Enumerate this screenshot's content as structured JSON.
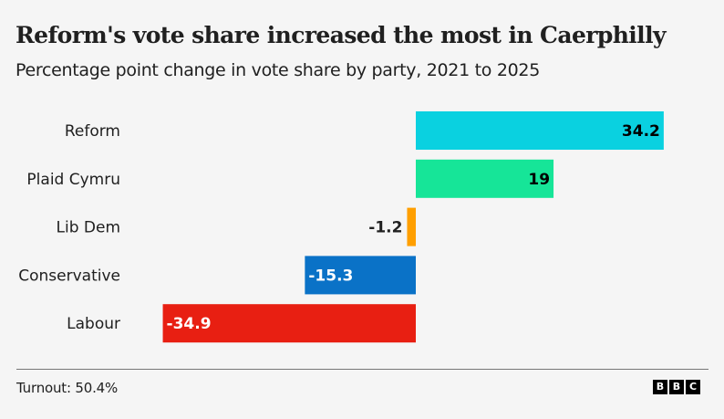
{
  "header": {
    "title": "Reform's vote share increased the most in Caerphilly",
    "subtitle": "Percentage point change in vote share by party, 2021 to 2025"
  },
  "chart_data": {
    "type": "bar",
    "orientation": "horizontal",
    "title": "Reform's vote share increased the most in Caerphilly",
    "subtitle": "Percentage point change in vote share by party, 2021 to 2025",
    "xlabel": "",
    "ylabel": "",
    "grid": false,
    "categories": [
      "Reform",
      "Plaid Cymru",
      "Lib Dem",
      "Conservative",
      "Labour"
    ],
    "values": [
      34.2,
      19,
      -1.2,
      -15.3,
      -34.9
    ],
    "value_labels": [
      "34.2",
      "19",
      "-1.2",
      "-15.3",
      "-34.9"
    ],
    "colors": [
      "#0ad1e0",
      "#16e598",
      "#ff9f00",
      "#0a72c7",
      "#e81f12"
    ],
    "label_colors": [
      "#000000",
      "#000000",
      "#202020",
      "#ffffff",
      "#ffffff"
    ],
    "xlim": [
      -34.9,
      34.2
    ]
  },
  "footer": {
    "turnout": "Turnout: 50.4%",
    "logo_letters": [
      "B",
      "B",
      "C"
    ]
  }
}
